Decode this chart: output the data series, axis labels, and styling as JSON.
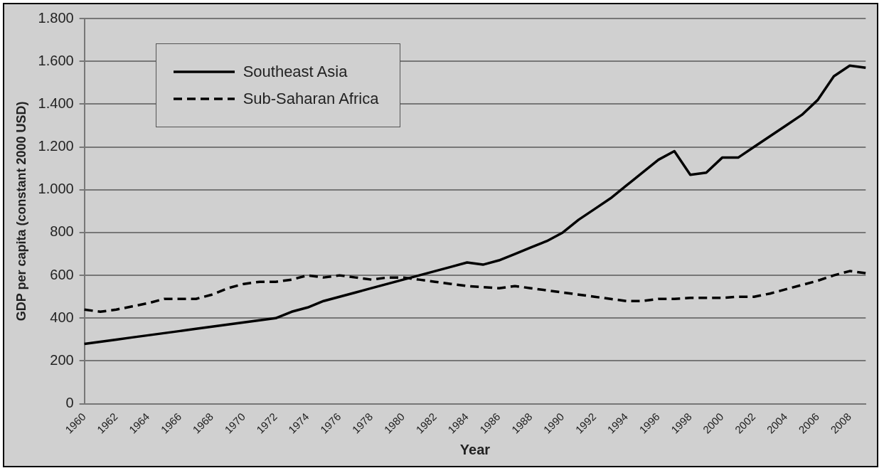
{
  "chart_data": {
    "type": "line",
    "xlabel": "Year",
    "ylabel": "GDP per capita (constant 2000 USD)",
    "categories": [
      "1960",
      null,
      "1962",
      null,
      "1964",
      null,
      "1966",
      null,
      "1968",
      null,
      "1970",
      null,
      "1972",
      null,
      "1974",
      null,
      "1976",
      null,
      "1978",
      null,
      "1980",
      null,
      "1982",
      null,
      "1984",
      null,
      "1986",
      null,
      "1988",
      null,
      "1990",
      null,
      "1992",
      null,
      "1994",
      null,
      "1996",
      null,
      "1998",
      null,
      "2000",
      null,
      "2002",
      null,
      "2004",
      null,
      "2006",
      null,
      "2008",
      null
    ],
    "series": [
      {
        "name": "Southeast Asia",
        "color": "#000000",
        "line_style": "solid",
        "values": [
          280,
          290,
          300,
          310,
          320,
          330,
          340,
          350,
          360,
          370,
          380,
          390,
          400,
          430,
          450,
          480,
          500,
          520,
          540,
          560,
          580,
          600,
          620,
          640,
          660,
          650,
          670,
          700,
          730,
          760,
          800,
          860,
          910,
          960,
          1020,
          1080,
          1140,
          1180,
          1070,
          1080,
          1150,
          1150,
          1200,
          1250,
          1300,
          1350,
          1420,
          1530,
          1580,
          1570
        ]
      },
      {
        "name": "Sub-Saharan Africa",
        "color": "#000000",
        "line_style": "dashed",
        "values": [
          440,
          430,
          440,
          455,
          470,
          490,
          490,
          490,
          510,
          540,
          560,
          570,
          570,
          580,
          600,
          590,
          600,
          590,
          580,
          590,
          590,
          580,
          570,
          560,
          550,
          545,
          540,
          550,
          540,
          530,
          520,
          510,
          500,
          490,
          480,
          480,
          490,
          490,
          495,
          495,
          495,
          500,
          500,
          515,
          535,
          555,
          575,
          600,
          620,
          610
        ]
      }
    ],
    "ylim": [
      0,
      1800
    ],
    "yticks": [
      0,
      200,
      400,
      600,
      800,
      {
        "value": 1000,
        "label": "1.000"
      },
      {
        "value": 1200,
        "label": "1.200"
      },
      {
        "value": 1400,
        "label": "1.400"
      },
      {
        "value": 1600,
        "label": "1.600"
      },
      {
        "value": 1800,
        "label": "1.800"
      }
    ],
    "grid": "y",
    "legend": "top left",
    "marker": "none"
  }
}
